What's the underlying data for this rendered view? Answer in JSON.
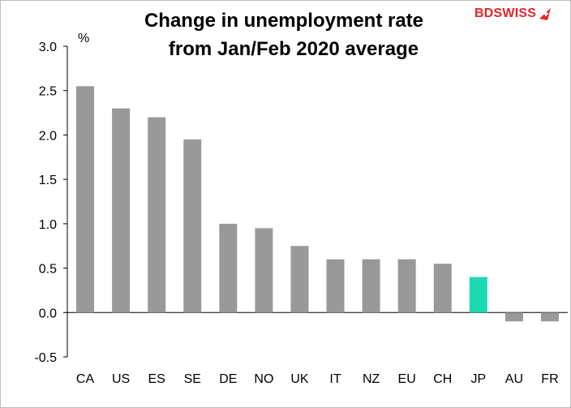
{
  "chart_data": {
    "type": "bar",
    "title_lines": [
      "Change in unemployment rate",
      "from Jan/Feb 2020 average"
    ],
    "ylabel": "%",
    "xlabel": "",
    "categories": [
      "CA",
      "US",
      "ES",
      "SE",
      "DE",
      "NO",
      "UK",
      "IT",
      "NZ",
      "EU",
      "CH",
      "JP",
      "AU",
      "FR"
    ],
    "values": [
      2.55,
      2.3,
      2.2,
      1.95,
      1.0,
      0.95,
      0.75,
      0.6,
      0.6,
      0.6,
      0.55,
      0.4,
      -0.1,
      -0.1
    ],
    "highlight_category": "JP",
    "ylim": [
      -0.5,
      3.0
    ],
    "yticks": [
      "-0.5",
      "0.0",
      "0.5",
      "1.0",
      "1.5",
      "2.0",
      "2.5",
      "3.0"
    ],
    "ytick_values": [
      -0.5,
      0.0,
      0.5,
      1.0,
      1.5,
      2.0,
      2.5,
      3.0
    ],
    "grid": false,
    "colors": {
      "bar": "#999999",
      "highlight": "#1ed8b4",
      "axis": "#000000"
    }
  },
  "brand": {
    "bd": "BD",
    "swiss": "SWISS"
  }
}
